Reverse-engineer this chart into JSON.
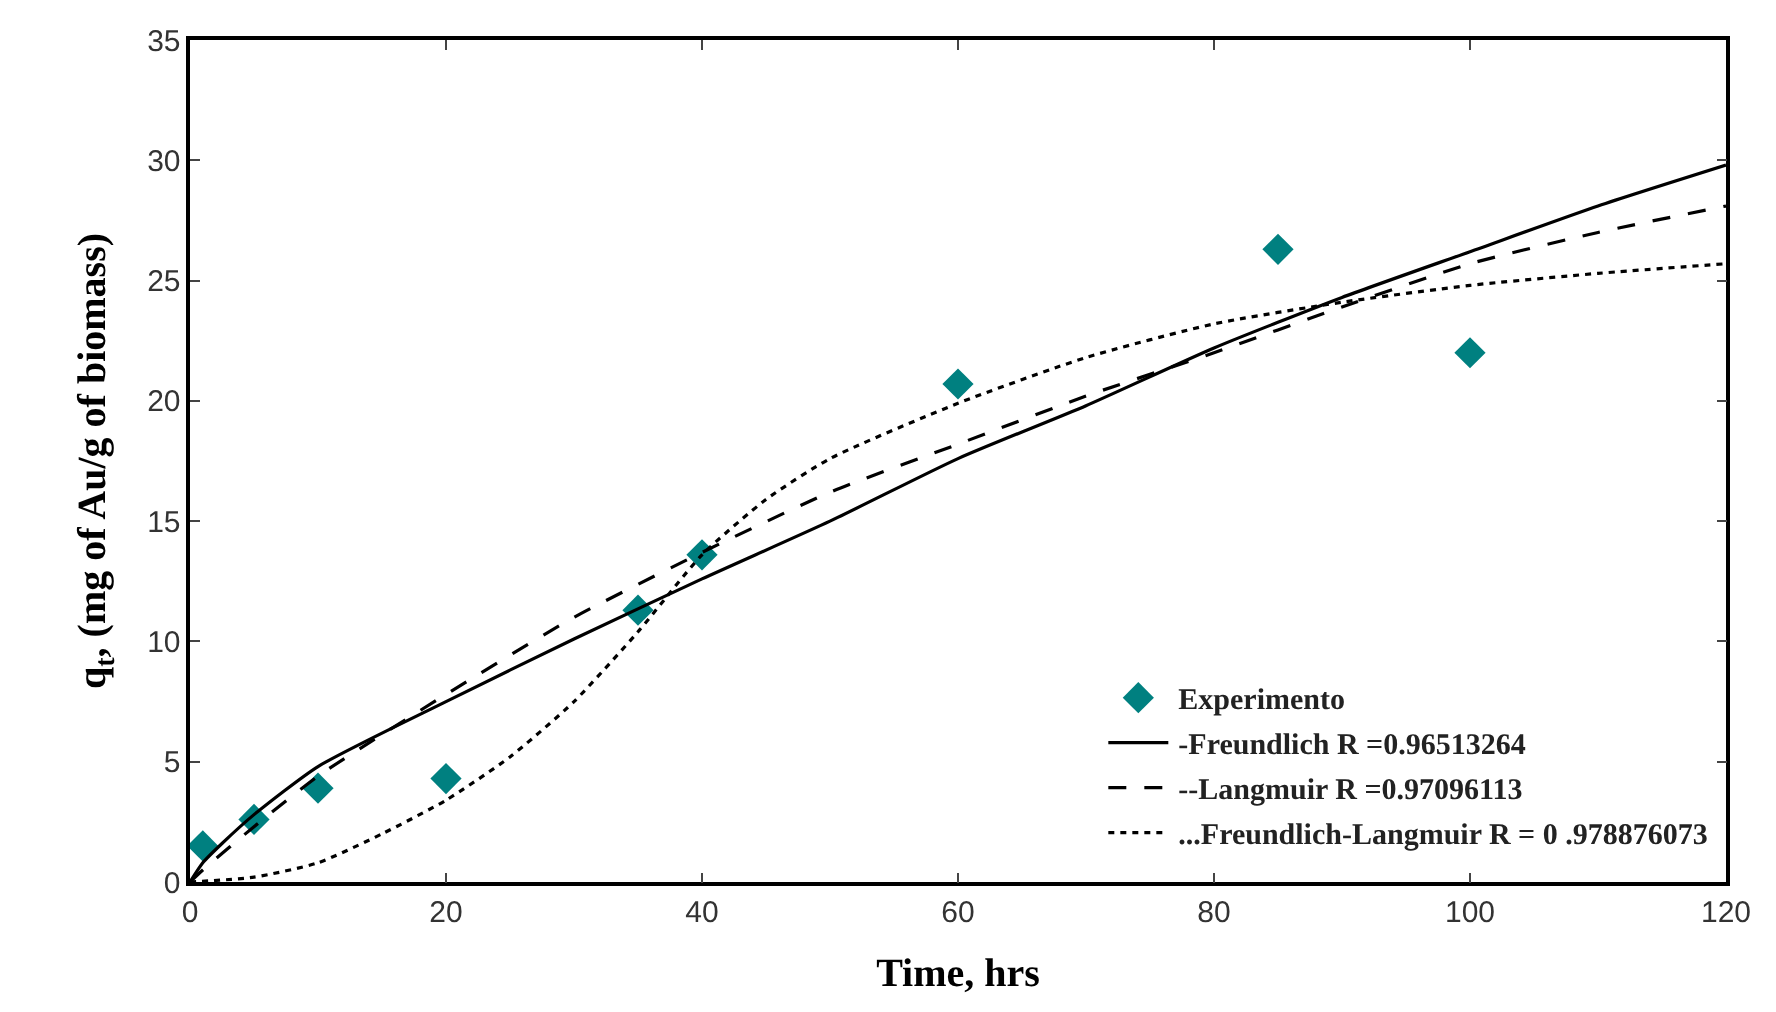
{
  "chart_data": {
    "type": "scatter",
    "xlabel": "Time, hrs",
    "ylabel": "q$_{t}$, (mg of Au/g of biomass)",
    "xlim": [
      0,
      120
    ],
    "xticks": [
      0,
      20,
      40,
      60,
      80,
      100,
      120
    ],
    "ylim": [
      0,
      35
    ],
    "yticks": [
      0,
      5,
      10,
      15,
      20,
      25,
      30,
      35
    ],
    "legend": "bottom right",
    "series": [
      {
        "name": "Experimento",
        "marker": "diamond",
        "color": "#008080",
        "x": [
          1,
          5,
          10,
          20,
          35,
          40,
          60,
          85,
          100
        ],
        "values": [
          1.5,
          2.6,
          3.9,
          4.3,
          11.3,
          13.6,
          20.7,
          26.3,
          22.0
        ]
      },
      {
        "name": "-Freundlich R =0.96513264",
        "type": "line",
        "line_style": "solid",
        "color": "#000000",
        "x": [
          0,
          1,
          2.5,
          5,
          10,
          20,
          30,
          40,
          50,
          60,
          70,
          80,
          90,
          100,
          110,
          120
        ],
        "values": [
          0,
          0.8,
          1.6,
          2.8,
          4.8,
          7.5,
          10.1,
          12.6,
          15.0,
          17.6,
          19.8,
          22.2,
          24.3,
          26.2,
          28.1,
          29.8
        ]
      },
      {
        "name": "--Langmuir R =0.97096113",
        "type": "line",
        "line_style": "dashed",
        "color": "#000000",
        "x": [
          0,
          1,
          5,
          10,
          20,
          30,
          40,
          50,
          60,
          70,
          80,
          90,
          100,
          110,
          120
        ],
        "values": [
          0,
          0.5,
          2.3,
          4.4,
          7.8,
          11.0,
          13.7,
          16.2,
          18.2,
          20.2,
          22.0,
          23.9,
          25.7,
          27.0,
          28.1
        ]
      },
      {
        "name": "...Freundlich-Langmuir R = 0 .978876073",
        "type": "line",
        "line_style": "dotted",
        "color": "#000000",
        "x": [
          0,
          5,
          10,
          15,
          20,
          25,
          30,
          35,
          40,
          45,
          50,
          60,
          70,
          80,
          90,
          100,
          110,
          120
        ],
        "values": [
          0,
          0.2,
          0.8,
          2.0,
          3.4,
          5.2,
          7.5,
          10.4,
          13.6,
          15.9,
          17.6,
          19.9,
          21.8,
          23.2,
          24.1,
          24.8,
          25.3,
          25.7
        ]
      }
    ]
  }
}
